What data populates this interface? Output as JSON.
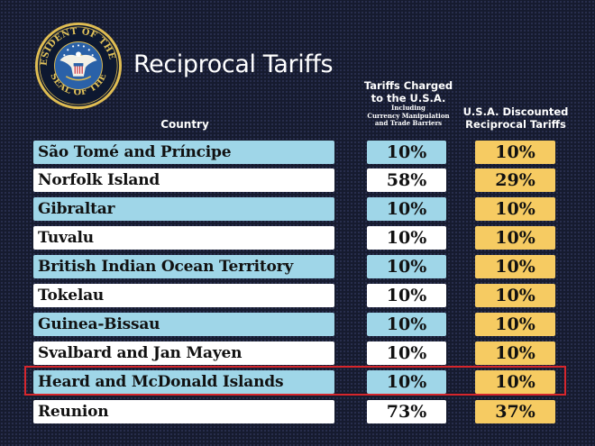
{
  "title": "Reciprocal Tariffs",
  "seal": {
    "top_text": "THE PRESIDENT OF THE UNITED",
    "bottom_text": "SEAL OF THE"
  },
  "headers": {
    "country": "Country",
    "charged_main": [
      "Tariffs Charged",
      "to the U.S.A."
    ],
    "charged_sub": [
      "Including",
      "Currency Manipulation",
      "and Trade Barriers"
    ],
    "discounted": [
      "U.S.A. Discounted",
      "Reciprocal Tariffs"
    ]
  },
  "colors": {
    "blue_row": "#9fd6e8",
    "white_row": "#ffffff",
    "discount_cell": "#f6cb62",
    "highlight_border": "#d6262c",
    "background": "#161b2f"
  },
  "highlighted_row": "Heard and McDonald Islands",
  "rows": [
    {
      "country": "São Tomé and Príncipe",
      "charged": "10%",
      "discounted": "10%",
      "shade": "blue"
    },
    {
      "country": "Norfolk Island",
      "charged": "58%",
      "discounted": "29%",
      "shade": "white"
    },
    {
      "country": "Gibraltar",
      "charged": "10%",
      "discounted": "10%",
      "shade": "blue"
    },
    {
      "country": "Tuvalu",
      "charged": "10%",
      "discounted": "10%",
      "shade": "white"
    },
    {
      "country": "British Indian Ocean Territory",
      "charged": "10%",
      "discounted": "10%",
      "shade": "blue"
    },
    {
      "country": "Tokelau",
      "charged": "10%",
      "discounted": "10%",
      "shade": "white"
    },
    {
      "country": "Guinea-Bissau",
      "charged": "10%",
      "discounted": "10%",
      "shade": "blue"
    },
    {
      "country": "Svalbard and Jan Mayen",
      "charged": "10%",
      "discounted": "10%",
      "shade": "white"
    },
    {
      "country": "Heard and McDonald Islands",
      "charged": "10%",
      "discounted": "10%",
      "shade": "blue"
    },
    {
      "country": "Reunion",
      "charged": "73%",
      "discounted": "37%",
      "shade": "white"
    }
  ]
}
